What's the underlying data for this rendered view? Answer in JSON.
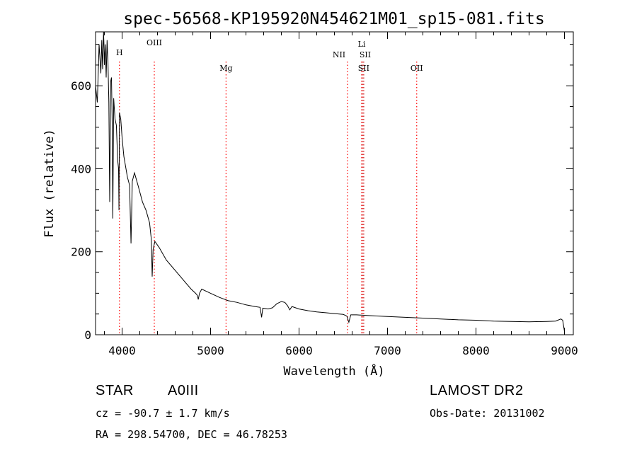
{
  "chart_data": {
    "type": "line",
    "title": "spec-56568-KP195920N454621M01_sp15-081.fits",
    "xlabel": "Wavelength (Å)",
    "ylabel": "Flux (relative)",
    "xlim": [
      3700,
      9100
    ],
    "ylim": [
      0,
      730
    ],
    "xticks": [
      4000,
      5000,
      6000,
      7000,
      8000,
      9000
    ],
    "yticks": [
      0,
      200,
      400,
      600
    ],
    "grid": false,
    "series": [
      {
        "name": "spectrum",
        "x": [
          3700,
          3720,
          3740,
          3760,
          3770,
          3780,
          3790,
          3797,
          3800,
          3810,
          3820,
          3830,
          3835,
          3840,
          3850,
          3860,
          3870,
          3880,
          3889,
          3895,
          3905,
          3920,
          3935,
          3950,
          3960,
          3965,
          3970,
          3985,
          4000,
          4020,
          4060,
          4085,
          4101,
          4115,
          4140,
          4180,
          4230,
          4270,
          4310,
          4330,
          4340,
          4350,
          4370,
          4420,
          4500,
          4600,
          4700,
          4780,
          4830,
          4850,
          4861,
          4875,
          4900,
          5000,
          5100,
          5200,
          5300,
          5400,
          5500,
          5560,
          5577,
          5590,
          5650,
          5700,
          5750,
          5800,
          5840,
          5870,
          5895,
          5920,
          6000,
          6100,
          6200,
          6300,
          6400,
          6500,
          6540,
          6563,
          6585,
          6650,
          6800,
          7000,
          7200,
          7400,
          7600,
          7800,
          8000,
          8200,
          8400,
          8600,
          8800,
          8900,
          8960,
          8980,
          9000
        ],
        "values": [
          600,
          560,
          700,
          630,
          710,
          640,
          735,
          690,
          650,
          700,
          620,
          710,
          680,
          660,
          560,
          320,
          610,
          620,
          500,
          280,
          570,
          520,
          505,
          420,
          400,
          300,
          535,
          520,
          475,
          430,
          380,
          360,
          220,
          370,
          390,
          360,
          320,
          300,
          270,
          230,
          140,
          205,
          225,
          210,
          180,
          155,
          130,
          110,
          100,
          95,
          85,
          100,
          110,
          100,
          90,
          82,
          78,
          72,
          68,
          66,
          42,
          64,
          62,
          65,
          75,
          80,
          78,
          70,
          60,
          68,
          62,
          58,
          55,
          53,
          51,
          49,
          45,
          30,
          48,
          48,
          46,
          44,
          42,
          40,
          38,
          36,
          35,
          33,
          32,
          31,
          32,
          33,
          38,
          35,
          8
        ]
      }
    ],
    "lines": [
      {
        "label": "H",
        "x": 3970
      },
      {
        "label": "OIII",
        "x": 4364
      },
      {
        "label": "Mg",
        "x": 5175
      },
      {
        "label": "NII",
        "x": 6548
      },
      {
        "label": "Li",
        "x": 6708
      },
      {
        "label": "SII",
        "x": 6716
      },
      {
        "label": "SII",
        "x": 6731
      },
      {
        "label": "OII",
        "x": 7330
      }
    ]
  },
  "info": {
    "object_class": "STAR",
    "subclass": "A0III",
    "survey": "LAMOST DR2",
    "cz": "cz = -90.7 ± 1.7 km/s",
    "obs_date": "Obs-Date: 20131002",
    "coords": "RA = 298.54700, DEC =  46.78253"
  },
  "colors": {
    "spectrum": "#000000",
    "line_marker": "#ff0000",
    "red_marker": "#cc0000"
  }
}
